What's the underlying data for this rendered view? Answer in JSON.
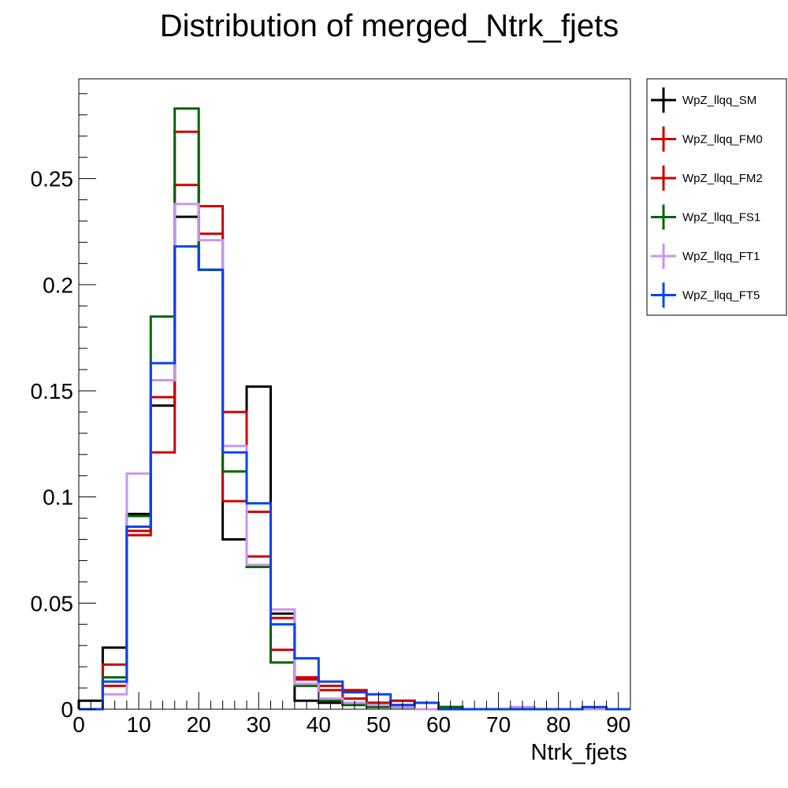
{
  "chart_data": {
    "type": "histogram",
    "title": "Distribution of merged_Ntrk_fjets",
    "xlabel": "Ntrk_fjets",
    "ylabel": "",
    "xlim": [
      0,
      92
    ],
    "ylim": [
      0,
      0.297
    ],
    "x_ticks": [
      "0",
      "10",
      "20",
      "30",
      "40",
      "50",
      "60",
      "70",
      "80",
      "90"
    ],
    "y_ticks": [
      "0",
      "0.05",
      "0.1",
      "0.15",
      "0.2",
      "0.25"
    ],
    "x_tick_values": [
      0,
      10,
      20,
      30,
      40,
      50,
      60,
      70,
      80,
      90
    ],
    "y_tick_values": [
      0,
      0.05,
      0.1,
      0.15,
      0.2,
      0.25
    ],
    "bin_edges": [
      0,
      4,
      8,
      12,
      16,
      20,
      24,
      28,
      32,
      36,
      40,
      44,
      48,
      52,
      56,
      60,
      64,
      68,
      72,
      76,
      80,
      84,
      88,
      92
    ],
    "legend_position": "right-outside-top",
    "series": [
      {
        "name": "WpZ_llqq_SM",
        "color": "#000000",
        "values": [
          0.004,
          0.029,
          0.092,
          0.143,
          0.232,
          0.207,
          0.08,
          0.152,
          0.045,
          0.004,
          0.003,
          0.002,
          0.002,
          0.001,
          0.0,
          0.0,
          0.0,
          0.0,
          0.0,
          0.0,
          0.0,
          0.0,
          0.0
        ]
      },
      {
        "name": "WpZ_llqq_FM0",
        "color": "#cc0000",
        "values": [
          0.0,
          0.021,
          0.084,
          0.121,
          0.272,
          0.237,
          0.14,
          0.093,
          0.028,
          0.015,
          0.011,
          0.009,
          0.003,
          0.004,
          0.0,
          0.0,
          0.0,
          0.0,
          0.0,
          0.0,
          0.0,
          0.0,
          0.0
        ]
      },
      {
        "name": "WpZ_llqq_FM2",
        "color": "#cc0000",
        "values": [
          0.0,
          0.011,
          0.082,
          0.147,
          0.247,
          0.224,
          0.098,
          0.072,
          0.043,
          0.014,
          0.009,
          0.005,
          0.003,
          0.004,
          0.0,
          0.001,
          0.0,
          0.0,
          0.0,
          0.0,
          0.0,
          0.0,
          0.0
        ]
      },
      {
        "name": "WpZ_llqq_FS1",
        "color": "#006600",
        "values": [
          0.0,
          0.015,
          0.091,
          0.185,
          0.283,
          0.207,
          0.112,
          0.067,
          0.022,
          0.011,
          0.004,
          0.002,
          0.001,
          0.001,
          0.0,
          0.001,
          0.0,
          0.0,
          0.0,
          0.0,
          0.0,
          0.0,
          0.0
        ]
      },
      {
        "name": "WpZ_llqq_FT1",
        "color": "#c896f0",
        "values": [
          0.0,
          0.007,
          0.111,
          0.155,
          0.238,
          0.221,
          0.124,
          0.068,
          0.047,
          0.012,
          0.005,
          0.003,
          0.002,
          0.001,
          0.0,
          0.0,
          0.0,
          0.0,
          0.001,
          0.0,
          0.0,
          0.0,
          0.0
        ]
      },
      {
        "name": "WpZ_llqq_FT5",
        "color": "#0044ee",
        "values": [
          0.0,
          0.013,
          0.086,
          0.163,
          0.218,
          0.207,
          0.121,
          0.097,
          0.04,
          0.024,
          0.013,
          0.008,
          0.007,
          0.002,
          0.003,
          0.0,
          0.0,
          0.0,
          0.0,
          0.0,
          0.0,
          0.001,
          0.0
        ]
      }
    ]
  }
}
